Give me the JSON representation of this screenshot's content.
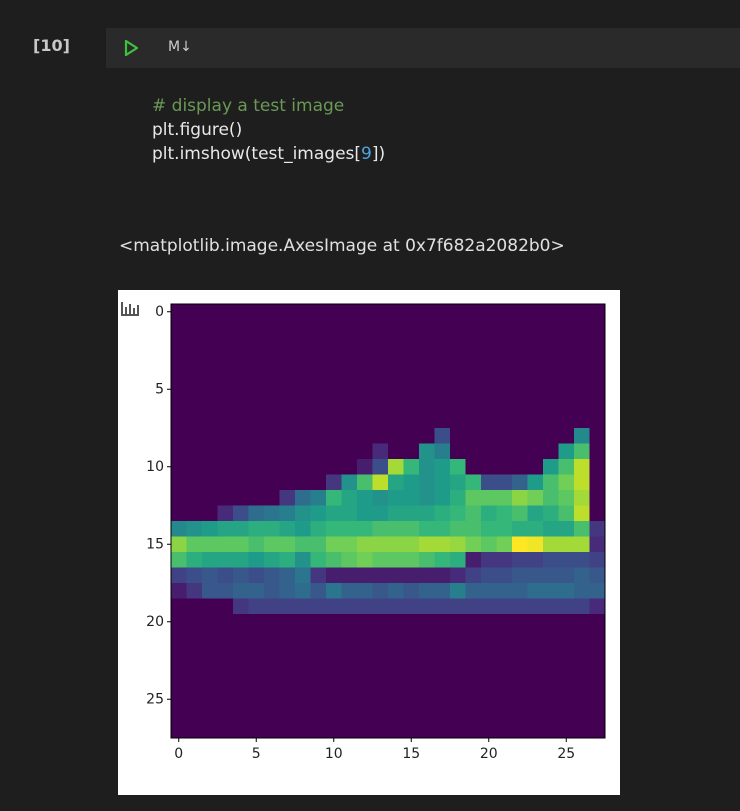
{
  "cell": {
    "execution_count": "[10]",
    "cell_type_label": "M↓",
    "code": {
      "comment": "# display a test image",
      "line2": "plt.figure()",
      "line3": [
        "plt.imshow(test_images[",
        "9",
        "])"
      ]
    },
    "output_text": "<matplotlib.image.AxesImage at 0x7f682a2082b0>"
  },
  "chart_data": {
    "type": "image",
    "colormap": "viridis",
    "xlim": [
      -0.5,
      27.5
    ],
    "ylim": [
      27.5,
      -0.5
    ],
    "xticks": [
      0,
      5,
      10,
      15,
      20,
      25
    ],
    "yticks": [
      0,
      5,
      10,
      15,
      20,
      25
    ],
    "pixels": [
      [
        0,
        0,
        0,
        0,
        0,
        0,
        0,
        0,
        0,
        0,
        0,
        0,
        0,
        0,
        0,
        0,
        0,
        0,
        0,
        0,
        0,
        0,
        0,
        0,
        0,
        0,
        0,
        0
      ],
      [
        0,
        0,
        0,
        0,
        0,
        0,
        0,
        0,
        0,
        0,
        0,
        0,
        0,
        0,
        0,
        0,
        0,
        0,
        0,
        0,
        0,
        0,
        0,
        0,
        0,
        0,
        0,
        0
      ],
      [
        0,
        0,
        0,
        0,
        0,
        0,
        0,
        0,
        0,
        0,
        0,
        0,
        0,
        0,
        0,
        0,
        0,
        0,
        0,
        0,
        0,
        0,
        0,
        0,
        0,
        0,
        0,
        0
      ],
      [
        0,
        0,
        0,
        0,
        0,
        0,
        0,
        0,
        0,
        0,
        0,
        0,
        0,
        0,
        0,
        0,
        0,
        0,
        0,
        0,
        0,
        0,
        0,
        0,
        0,
        0,
        0,
        0
      ],
      [
        0,
        0,
        0,
        0,
        0,
        0,
        0,
        0,
        0,
        0,
        0,
        0,
        0,
        0,
        0,
        0,
        0,
        0,
        0,
        0,
        0,
        0,
        0,
        0,
        0,
        0,
        0,
        0
      ],
      [
        0,
        0,
        0,
        0,
        0,
        0,
        0,
        0,
        0,
        0,
        0,
        0,
        0,
        0,
        0,
        0,
        0,
        0,
        0,
        0,
        0,
        0,
        0,
        0,
        0,
        0,
        0,
        0
      ],
      [
        0,
        0,
        0,
        0,
        0,
        0,
        0,
        0,
        0,
        0,
        0,
        0,
        0,
        0,
        0,
        0,
        0,
        0,
        0,
        0,
        0,
        0,
        0,
        0,
        0,
        0,
        0,
        0
      ],
      [
        0,
        0,
        0,
        0,
        0,
        0,
        0,
        0,
        0,
        0,
        0,
        0,
        0,
        0,
        0,
        0,
        0,
        0,
        0,
        0,
        0,
        0,
        0,
        0,
        0,
        0,
        0,
        0
      ],
      [
        0,
        0,
        0,
        0,
        0,
        0,
        0,
        0,
        0,
        0,
        0,
        0,
        0,
        0,
        0,
        0,
        0,
        60,
        0,
        0,
        0,
        0,
        0,
        0,
        0,
        0,
        120,
        0
      ],
      [
        0,
        0,
        0,
        0,
        0,
        0,
        0,
        0,
        0,
        0,
        0,
        0,
        0,
        30,
        0,
        0,
        130,
        110,
        0,
        0,
        0,
        0,
        0,
        0,
        0,
        140,
        180,
        0
      ],
      [
        0,
        0,
        0,
        0,
        0,
        0,
        0,
        0,
        0,
        0,
        0,
        0,
        20,
        60,
        220,
        170,
        130,
        140,
        170,
        0,
        0,
        0,
        0,
        0,
        140,
        180,
        230,
        0
      ],
      [
        0,
        0,
        0,
        0,
        0,
        0,
        0,
        0,
        0,
        0,
        40,
        130,
        180,
        230,
        150,
        140,
        130,
        140,
        150,
        170,
        60,
        60,
        80,
        140,
        180,
        200,
        230,
        0
      ],
      [
        0,
        0,
        0,
        0,
        0,
        0,
        0,
        40,
        90,
        110,
        170,
        150,
        140,
        130,
        140,
        140,
        130,
        140,
        160,
        190,
        190,
        190,
        210,
        200,
        180,
        190,
        220,
        0
      ],
      [
        0,
        0,
        0,
        30,
        60,
        90,
        100,
        110,
        130,
        140,
        150,
        150,
        140,
        140,
        150,
        150,
        150,
        160,
        170,
        180,
        160,
        170,
        180,
        150,
        160,
        180,
        230,
        0
      ],
      [
        120,
        130,
        140,
        150,
        150,
        160,
        160,
        150,
        140,
        160,
        170,
        170,
        170,
        180,
        180,
        180,
        170,
        170,
        180,
        180,
        170,
        170,
        160,
        160,
        150,
        150,
        180,
        40
      ],
      [
        210,
        190,
        190,
        190,
        190,
        180,
        190,
        190,
        180,
        180,
        200,
        200,
        210,
        210,
        210,
        210,
        220,
        220,
        215,
        200,
        190,
        200,
        255,
        250,
        220,
        220,
        220,
        30
      ],
      [
        180,
        160,
        150,
        150,
        150,
        140,
        150,
        160,
        130,
        170,
        180,
        190,
        200,
        190,
        190,
        190,
        180,
        170,
        160,
        20,
        40,
        40,
        50,
        50,
        60,
        60,
        60,
        50
      ],
      [
        50,
        60,
        70,
        60,
        70,
        60,
        70,
        80,
        100,
        40,
        20,
        20,
        20,
        20,
        20,
        20,
        20,
        20,
        30,
        50,
        60,
        60,
        70,
        70,
        70,
        70,
        80,
        70
      ],
      [
        20,
        40,
        70,
        70,
        80,
        80,
        70,
        80,
        90,
        70,
        100,
        80,
        80,
        70,
        80,
        70,
        80,
        80,
        110,
        80,
        80,
        80,
        80,
        90,
        90,
        90,
        80,
        80
      ],
      [
        0,
        0,
        0,
        0,
        40,
        50,
        50,
        50,
        50,
        50,
        50,
        50,
        50,
        50,
        50,
        50,
        50,
        50,
        50,
        50,
        50,
        50,
        50,
        50,
        50,
        50,
        50,
        30
      ],
      [
        0,
        0,
        0,
        0,
        0,
        0,
        0,
        0,
        0,
        0,
        0,
        0,
        0,
        0,
        0,
        0,
        0,
        0,
        0,
        0,
        0,
        0,
        0,
        0,
        0,
        0,
        0,
        0
      ],
      [
        0,
        0,
        0,
        0,
        0,
        0,
        0,
        0,
        0,
        0,
        0,
        0,
        0,
        0,
        0,
        0,
        0,
        0,
        0,
        0,
        0,
        0,
        0,
        0,
        0,
        0,
        0,
        0
      ],
      [
        0,
        0,
        0,
        0,
        0,
        0,
        0,
        0,
        0,
        0,
        0,
        0,
        0,
        0,
        0,
        0,
        0,
        0,
        0,
        0,
        0,
        0,
        0,
        0,
        0,
        0,
        0,
        0
      ],
      [
        0,
        0,
        0,
        0,
        0,
        0,
        0,
        0,
        0,
        0,
        0,
        0,
        0,
        0,
        0,
        0,
        0,
        0,
        0,
        0,
        0,
        0,
        0,
        0,
        0,
        0,
        0,
        0
      ],
      [
        0,
        0,
        0,
        0,
        0,
        0,
        0,
        0,
        0,
        0,
        0,
        0,
        0,
        0,
        0,
        0,
        0,
        0,
        0,
        0,
        0,
        0,
        0,
        0,
        0,
        0,
        0,
        0
      ],
      [
        0,
        0,
        0,
        0,
        0,
        0,
        0,
        0,
        0,
        0,
        0,
        0,
        0,
        0,
        0,
        0,
        0,
        0,
        0,
        0,
        0,
        0,
        0,
        0,
        0,
        0,
        0,
        0
      ],
      [
        0,
        0,
        0,
        0,
        0,
        0,
        0,
        0,
        0,
        0,
        0,
        0,
        0,
        0,
        0,
        0,
        0,
        0,
        0,
        0,
        0,
        0,
        0,
        0,
        0,
        0,
        0,
        0
      ],
      [
        0,
        0,
        0,
        0,
        0,
        0,
        0,
        0,
        0,
        0,
        0,
        0,
        0,
        0,
        0,
        0,
        0,
        0,
        0,
        0,
        0,
        0,
        0,
        0,
        0,
        0,
        0,
        0
      ]
    ]
  }
}
